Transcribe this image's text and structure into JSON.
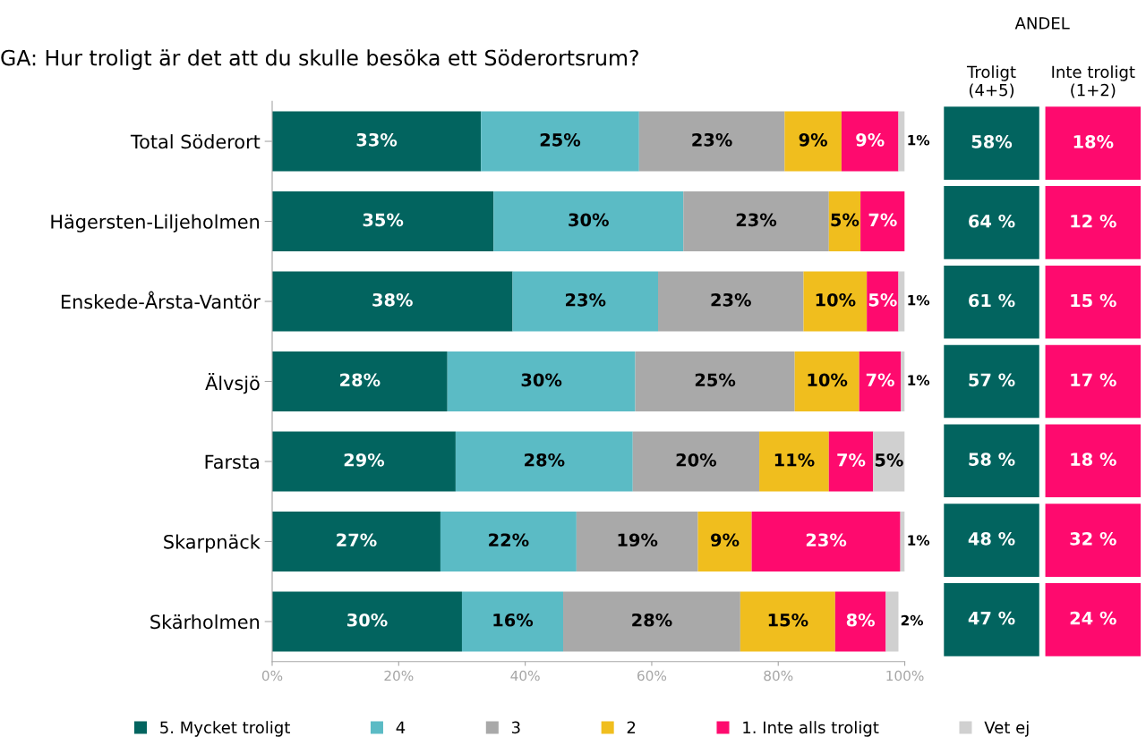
{
  "chart_data": [
    {
      "type": "bar",
      "orientation": "horizontal",
      "stacked": true,
      "title": "GA: Hur troligt är det att du skulle besöka ett Söderortsrum?",
      "categories": [
        "Total Söderort",
        "Hägersten-Liljeholmen",
        "Enskede-Årsta-Vantör",
        "Älvsjö",
        "Farsta",
        "Skarpnäck",
        "Skärholmen"
      ],
      "xlim": [
        0,
        100
      ],
      "xticks": [
        {
          "value": 0,
          "label": "0%"
        },
        {
          "value": 20,
          "label": "20%"
        },
        {
          "value": 40,
          "label": "40%"
        },
        {
          "value": 60,
          "label": "60%"
        },
        {
          "value": 80,
          "label": "80%"
        },
        {
          "value": 100,
          "label": "100%"
        }
      ],
      "grid": false,
      "legend": "bottom",
      "series": [
        {
          "name": "5. Mycket troligt",
          "color": "#02645f",
          "values": [
            33,
            35,
            38,
            27.7,
            29,
            26.6,
            30
          ],
          "value_labels": [
            "33%",
            "35%",
            "38%",
            "28%",
            "29%",
            "27%",
            "30%"
          ]
        },
        {
          "name": "4",
          "color": "#5bbbc5",
          "values": [
            25,
            30,
            23,
            29.7,
            28,
            21.5,
            16
          ],
          "value_labels": [
            "25%",
            "30%",
            "23%",
            "30%",
            "28%",
            "22%",
            "16%"
          ]
        },
        {
          "name": "3",
          "color": "#a9a9a9",
          "values": [
            23,
            23,
            23,
            25.2,
            20,
            19.2,
            28
          ],
          "value_labels": [
            "23%",
            "23%",
            "23%",
            "25%",
            "20%",
            "19%",
            "28%"
          ]
        },
        {
          "name": "2",
          "color": "#f0be1e",
          "values": [
            9,
            5,
            10,
            10.2,
            11,
            8.5,
            15
          ],
          "value_labels": [
            "9%",
            "5%",
            "10%",
            "10%",
            "11%",
            "9%",
            "15%"
          ]
        },
        {
          "name": "1. Inte alls troligt",
          "color": "#fe0a6e",
          "values": [
            9,
            7,
            5,
            6.6,
            7,
            23.5,
            8
          ],
          "value_labels": [
            "9%",
            "7%",
            "5%",
            "7%",
            "7%",
            "23%",
            "8%"
          ]
        },
        {
          "name": "Vet ej",
          "color": "#d0d0d0",
          "values": [
            1,
            null,
            1,
            0.6,
            5,
            0.7,
            2
          ],
          "value_labels": [
            "1%",
            null,
            "1%",
            "1%",
            "5%",
            "1%",
            "2%"
          ]
        }
      ]
    },
    {
      "type": "other",
      "title": "ANDEL",
      "categories": [
        "Troligt\n(4+5)",
        "Inte troligt\n(1+2)"
      ],
      "colors": [
        "#02645f",
        "#fe0a6e"
      ],
      "cell_labels": [
        [
          "58%",
          "18%"
        ],
        [
          "64 %",
          "12 %"
        ],
        [
          "61 %",
          "15 %"
        ],
        [
          "57 %",
          "17 %"
        ],
        [
          "58 %",
          "18 %"
        ],
        [
          "48 %",
          "32 %"
        ],
        [
          "47 %",
          "24 %"
        ]
      ]
    }
  ]
}
